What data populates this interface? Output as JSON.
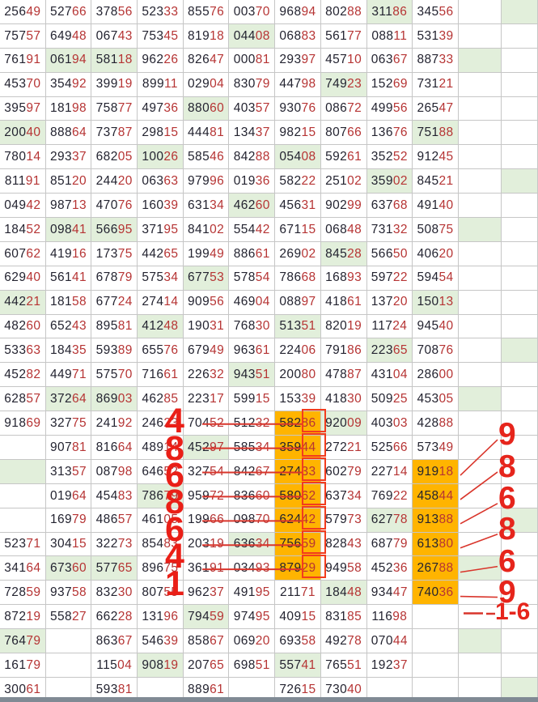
{
  "meta": {
    "description": "Grid of 5-digit lottery numbers, 29 rows; first three digits dark, last two digits red; some cells highlighted green or orange; red marker annotations",
    "cell_format": "value[|flags] flags: g=green background, o=orange background, b=red box around last two digits"
  },
  "colors": {
    "digit_primary": "#232330",
    "digit_tail_red": "#b63434",
    "green_highlight": "#e2efdb",
    "orange_highlight": "#ffb400",
    "annotation_red": "#ea1f17",
    "annotation_line_red": "#d9352b",
    "box_border_red": "#f23c1e",
    "grid_line": "#c6c6c6",
    "bottom_bar": "#808a94"
  },
  "grid": {
    "rows": [
      [
        "25649",
        "52766",
        "37856",
        "52333",
        "85576",
        "00370",
        "96894",
        "80288",
        "31186|g",
        "34556",
        "",
        "|g"
      ],
      [
        "75757",
        "64948",
        "06743",
        "75345",
        "81918",
        "04408|g",
        "06883",
        "56177",
        "08811",
        "53139",
        "",
        ""
      ],
      [
        "76191",
        "06194|g",
        "58118|g",
        "96226",
        "82647",
        "00081",
        "29397",
        "45710",
        "06367",
        "88733",
        "|g",
        ""
      ],
      [
        "45370",
        "35492",
        "39919",
        "89911",
        "02904",
        "83079",
        "44798",
        "74923|g",
        "15269",
        "73121",
        "",
        ""
      ],
      [
        "39597",
        "18198",
        "75877",
        "49736",
        "88060|g",
        "40357",
        "93076",
        "08672",
        "49956",
        "26547",
        "",
        ""
      ],
      [
        "20040|g",
        "88864",
        "73787",
        "29815",
        "44481",
        "13437",
        "98215",
        "80766",
        "13676",
        "75188|g",
        "",
        ""
      ],
      [
        "78014",
        "29337",
        "68205",
        "10026|g",
        "58546",
        "84288",
        "05408|g",
        "59261",
        "35252",
        "91245",
        "",
        ""
      ],
      [
        "81191",
        "85120",
        "24420",
        "06363",
        "97996",
        "01936",
        "58222",
        "25102",
        "35902|g",
        "84521",
        "",
        "|g"
      ],
      [
        "04942",
        "98713",
        "47076",
        "16039",
        "63134",
        "46260|g",
        "45631",
        "90299",
        "63768",
        "49140",
        "",
        ""
      ],
      [
        "18452",
        "09841|g",
        "56695|g",
        "37195",
        "84102",
        "55442",
        "67115",
        "06848",
        "73132",
        "50875",
        "|g",
        ""
      ],
      [
        "60762",
        "41916",
        "17375",
        "44265",
        "19949",
        "88661",
        "26902",
        "84528|g",
        "56650",
        "40620",
        "",
        ""
      ],
      [
        "62940",
        "56141",
        "67879",
        "57534",
        "67753|g",
        "57854",
        "78668",
        "16893",
        "59722",
        "59454",
        "",
        ""
      ],
      [
        "44221|g",
        "18158",
        "67724",
        "27414",
        "90956",
        "46904",
        "08897",
        "41861",
        "13720",
        "15013|g",
        "",
        ""
      ],
      [
        "48260",
        "65243",
        "89581",
        "41248|g",
        "19031",
        "76830",
        "51351|g",
        "82019",
        "11724",
        "94540",
        "",
        ""
      ],
      [
        "53363",
        "18435",
        "59389",
        "65576",
        "67949",
        "96361",
        "22406",
        "79186",
        "22365|g",
        "70876",
        "",
        "|g"
      ],
      [
        "45282",
        "44971",
        "57570",
        "71661",
        "22632",
        "94351|g",
        "20080",
        "47887",
        "43104",
        "28600",
        "",
        ""
      ],
      [
        "62857",
        "37264|g",
        "86903|g",
        "46285",
        "22317",
        "59915",
        "15339",
        "41830",
        "50925",
        "45305",
        "|g",
        ""
      ],
      [
        "91869",
        "32775",
        "24192",
        "24623",
        "70452",
        "51232",
        "58286|o|b",
        "92009|g",
        "40303",
        "42888",
        "",
        ""
      ],
      [
        "",
        "90781",
        "81664",
        "48914",
        "45297|g",
        "58534",
        "35944|o|b",
        "27221",
        "52566",
        "57349",
        "",
        ""
      ],
      [
        "|g",
        "31357",
        "08798",
        "64652",
        "32754",
        "84267",
        "27433|o|b",
        "60279",
        "22714",
        "91918|o",
        "",
        ""
      ],
      [
        "",
        "01964",
        "45483",
        "78679|g",
        "95972",
        "83660",
        "58062|o|b",
        "63734",
        "76922",
        "45844|o",
        "",
        ""
      ],
      [
        "",
        "16979",
        "48657",
        "46105",
        "19966",
        "09870",
        "62442|o|b",
        "57973",
        "62778|g",
        "91388|o",
        "",
        "|g"
      ],
      [
        "52371",
        "30415",
        "32273",
        "85483",
        "20319",
        "63634|g",
        "75659|o|b",
        "82843",
        "68779",
        "61380|o",
        "",
        ""
      ],
      [
        "34164",
        "67360|g",
        "57765|g",
        "89675",
        "36191",
        "03493",
        "87929|o|b",
        "94958",
        "45236",
        "26788|o",
        "|g",
        ""
      ],
      [
        "72859",
        "93758",
        "83230",
        "80755",
        "96237",
        "49195",
        "21171",
        "18448|g",
        "93447",
        "74036|o",
        "",
        ""
      ],
      [
        "87219",
        "55827",
        "66228",
        "13196",
        "79459|g",
        "97495",
        "40915",
        "83185",
        "11698",
        "",
        "",
        ""
      ],
      [
        "76479|g",
        "",
        "86367",
        "54639",
        "85867",
        "06920",
        "69358",
        "49278",
        "07044",
        "",
        "|g",
        ""
      ],
      [
        "16179",
        "",
        "11504",
        "90819|g",
        "20765",
        "69851",
        "55741|g",
        "76551",
        "19237",
        "",
        "",
        ""
      ],
      [
        "30061",
        "",
        "59381",
        "",
        "88961",
        "",
        "72615",
        "73040",
        "",
        "",
        "",
        "|g"
      ]
    ]
  },
  "annotations": {
    "left_overlay_digits": [
      {
        "row": 18,
        "digit": "4"
      },
      {
        "row": 19,
        "digit": "8"
      },
      {
        "row": 20,
        "digit": "6"
      },
      {
        "row": 21,
        "digit": "8"
      },
      {
        "row": 22,
        "digit": "6"
      },
      {
        "row": 23,
        "digit": "4"
      },
      {
        "row": 24,
        "digit": "1"
      }
    ],
    "right_callouts": [
      {
        "row": 20,
        "label": "9"
      },
      {
        "row": 21,
        "label": "8"
      },
      {
        "row": 22,
        "label": "6"
      },
      {
        "row": 23,
        "label": "8"
      },
      {
        "row": 24,
        "label": "6"
      },
      {
        "row": 25,
        "label": "9"
      },
      {
        "row": 26,
        "label": "1-6"
      }
    ],
    "strike_rows": [
      18,
      19,
      20,
      21,
      22,
      23,
      24
    ]
  }
}
